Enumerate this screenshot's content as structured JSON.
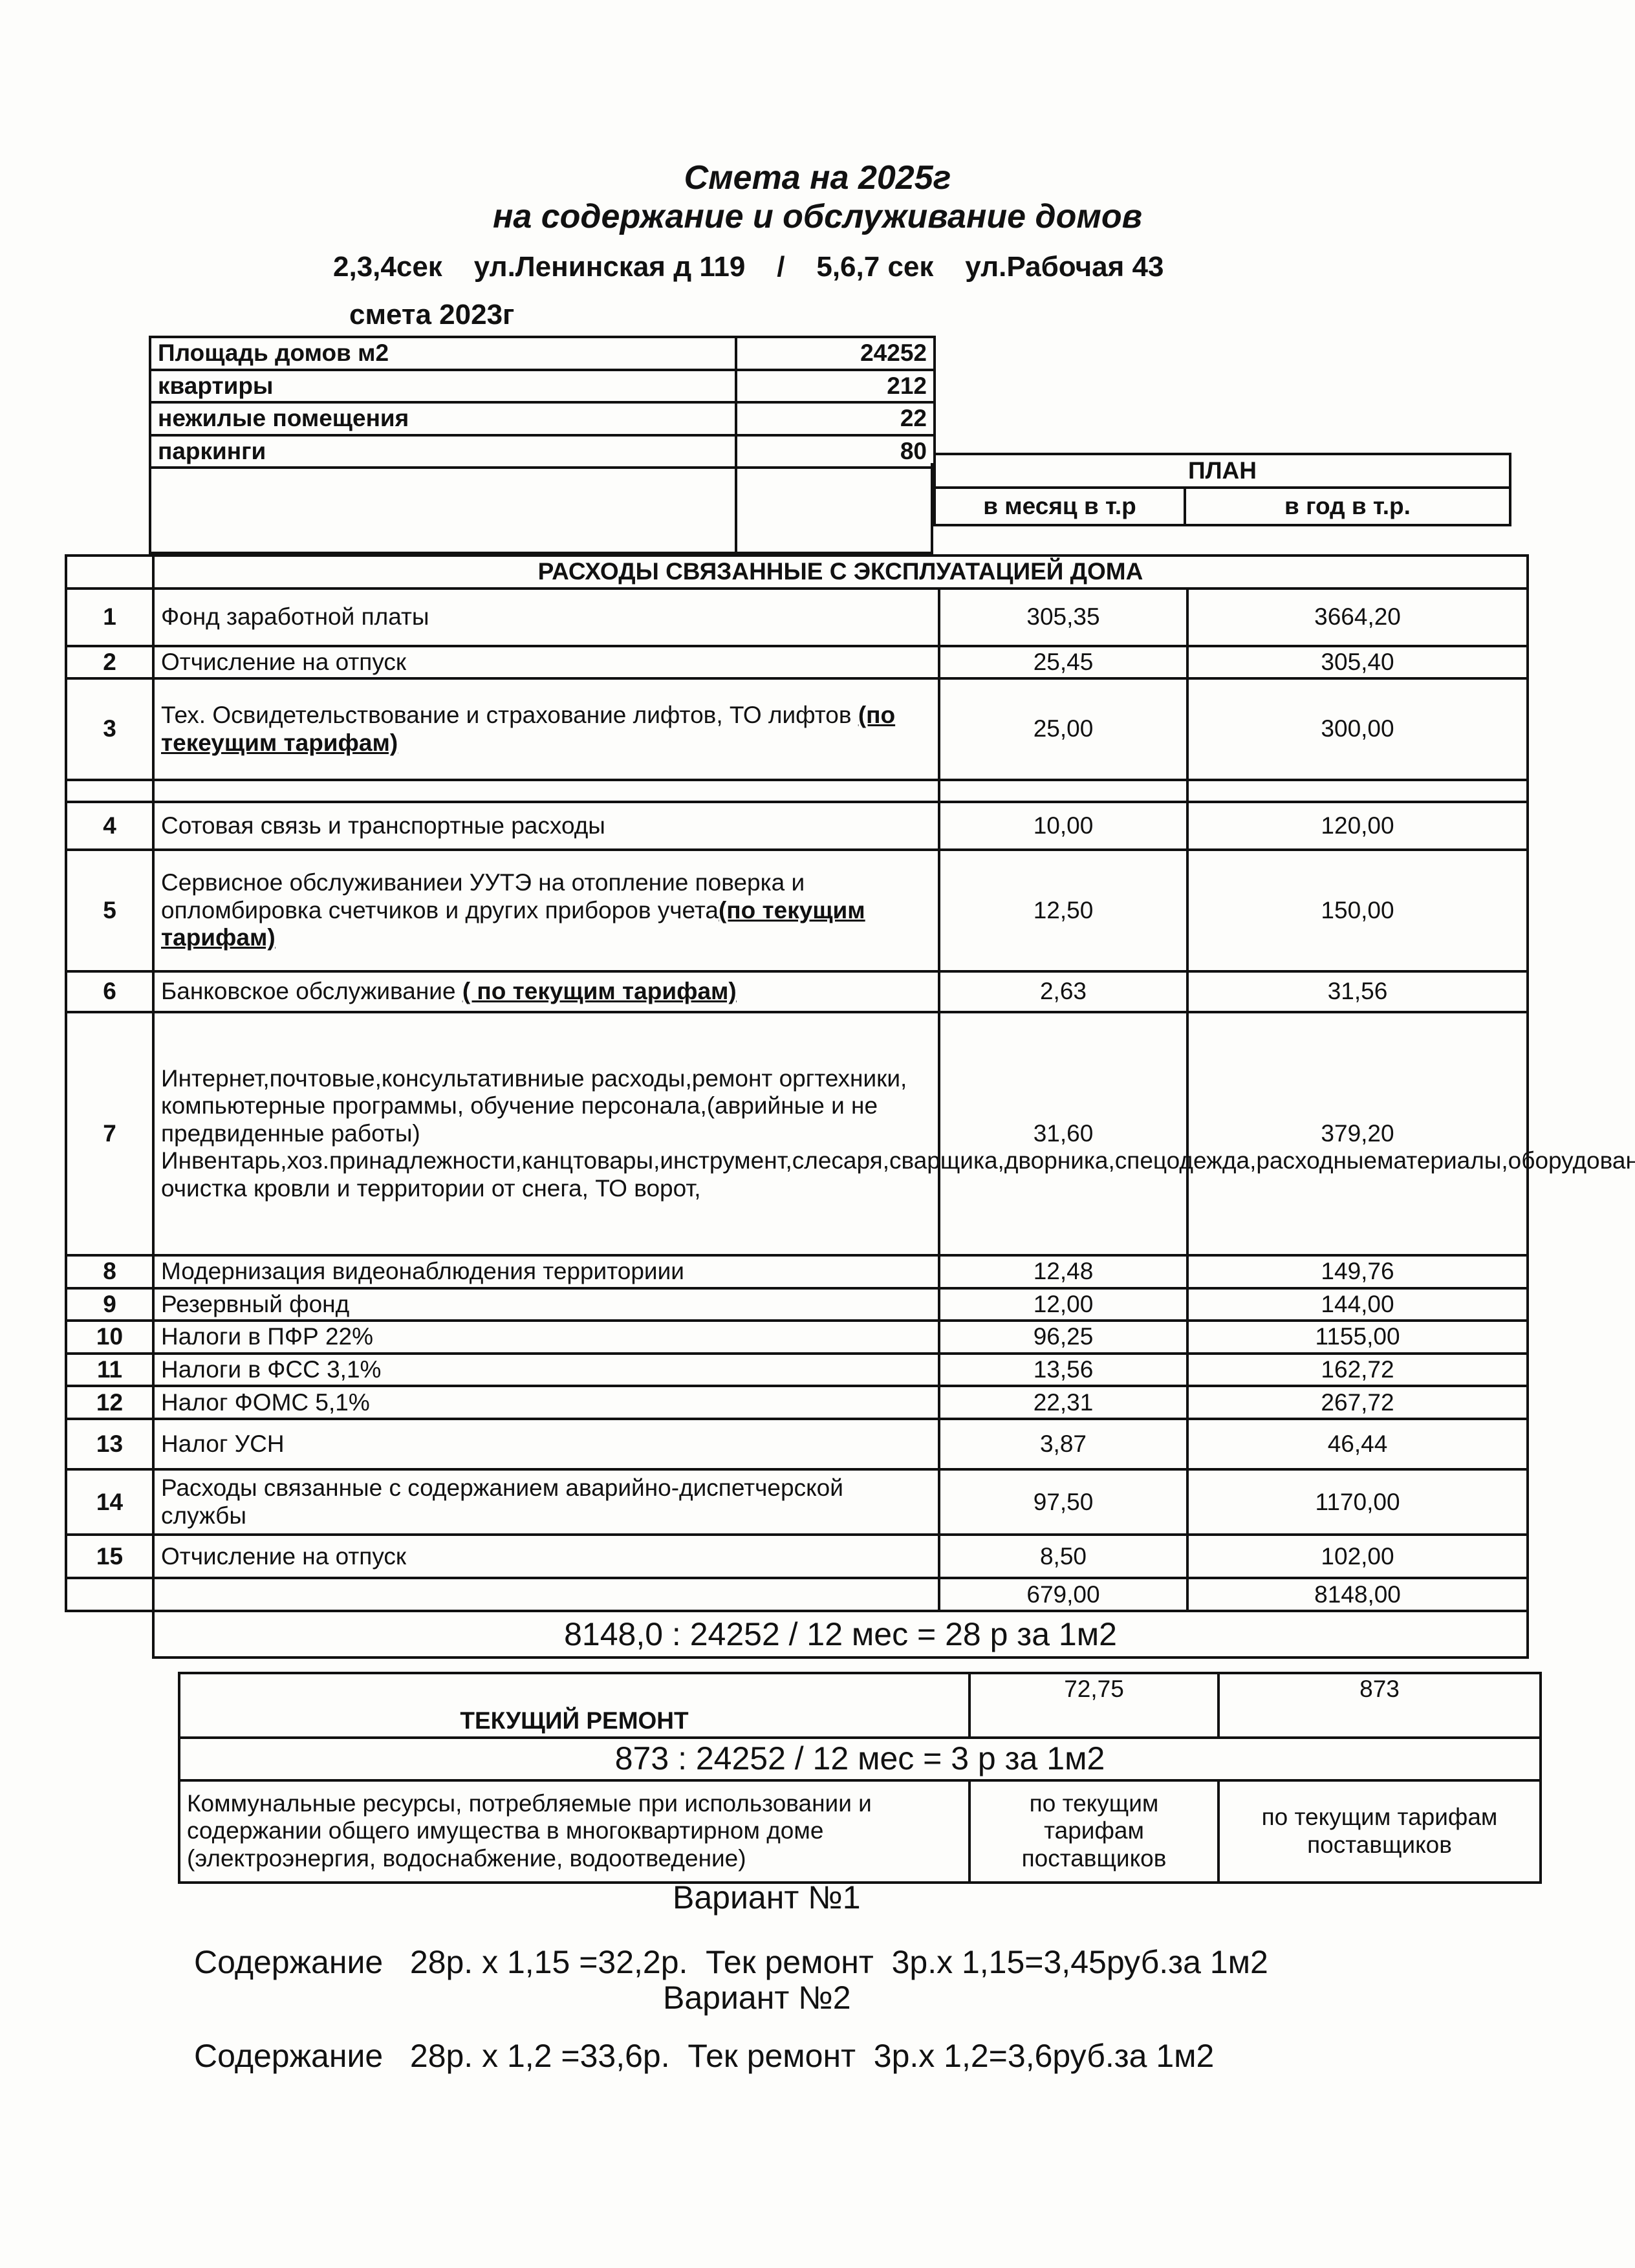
{
  "header": {
    "title": "Смета на 2025г",
    "subtitle": "на содержание и обслуживание домов",
    "address": "2,3,4сек    ул.Ленинская д 119    /    5,6,7 сек    ул.Рабочая 43",
    "note": "смета 2023г"
  },
  "summary": [
    {
      "label": "Площадь домов   м2",
      "value": "24252"
    },
    {
      "label": "квартиры",
      "value": "212"
    },
    {
      "label": "нежилые помещения",
      "value": "22"
    },
    {
      "label": "паркинги",
      "value": "80"
    }
  ],
  "plan": {
    "title": "ПЛАН",
    "month": "в месяц в т.р",
    "year": "в год в т.р."
  },
  "section_title": "РАСХОДЫ СВЯЗАННЫЕ С ЭКСПЛУАТАЦИЕЙ ДОМА",
  "rows": [
    {
      "n": "1",
      "desc": "Фонд заработной платы",
      "note": "",
      "month": "305,35",
      "year": "3664,20"
    },
    {
      "n": "2",
      "desc": "Отчисление на отпуск",
      "note": "",
      "month": "25,45",
      "year": "305,40"
    },
    {
      "n": "3",
      "desc": "Тех. Освидетельствование и страхование лифтов, ТО лифтов ",
      "note": "(по текеущим тарифам)",
      "month": "25,00",
      "year": "300,00"
    },
    {
      "n": "",
      "desc": "",
      "note": "",
      "month": "",
      "year": ""
    },
    {
      "n": "4",
      "desc": "Сотовая связь и транспортные расходы",
      "note": "",
      "month": "10,00",
      "year": "120,00"
    },
    {
      "n": "5",
      "desc": "Сервисное обслуживаниеи УУТЭ на отопление  поверка и опломбировка счетчиков и других приборов учета",
      "note": "(по текущим тарифам)",
      "month": "12,50",
      "year": "150,00"
    },
    {
      "n": "6",
      "desc": "Банковское обслуживание   ",
      "note": "( по текущим тарифам)",
      "month": "2,63",
      "year": "31,56"
    },
    {
      "n": "7",
      "desc": "Интернет,почтовые,консультативниые расходы,ремонт оргтехники, компьютерные программы, обучение персонала,(аврийные и не предвиденные работы) Инвентарь,хоз.принадлежности,канцтовары,инструмент,слесаря,сварщика,дворника,спецодежда,расходныематериалы,оборудование, очистка кровли и территории от снега, ТО ворот,",
      "note": "",
      "month": "31,60",
      "year": "379,20"
    },
    {
      "n": "8",
      "desc": "Модернизация видеонаблюдения территориии",
      "note": "",
      "month": "12,48",
      "year": "149,76"
    },
    {
      "n": "9",
      "desc": "Резервный фонд",
      "note": "",
      "month": "12,00",
      "year": "144,00"
    },
    {
      "n": "10",
      "desc": "Налоги в ПФР 22%",
      "note": "",
      "month": "96,25",
      "year": "1155,00"
    },
    {
      "n": "11",
      "desc": "Налоги в ФСС 3,1%",
      "note": "",
      "month": "13,56",
      "year": "162,72"
    },
    {
      "n": "12",
      "desc": "Налог ФОМС 5,1%",
      "note": "",
      "month": "22,31",
      "year": "267,72"
    },
    {
      "n": "13",
      "desc": "Налог УСН",
      "note": "",
      "month": "3,87",
      "year": "46,44"
    },
    {
      "n": "14",
      "desc": "Расходы связанные с содержанием аварийно-диспетчерской службы",
      "note": "",
      "month": "97,50",
      "year": "1170,00"
    },
    {
      "n": "15",
      "desc": "Отчисление на отпуск",
      "note": "",
      "month": "8,50",
      "year": "102,00"
    },
    {
      "n": "",
      "desc": "",
      "note": "",
      "month": "679,00",
      "year": "8148,00"
    }
  ],
  "formula_main": "8148,0 :  24252  /   12 мес  =  28 р   за   1м2",
  "repair": {
    "label": "ТЕКУЩИЙ РЕМОНТ",
    "month": "72,75",
    "year": "873",
    "formula": "873  :  24252  / 12 мес  =   3 р   за 1м2",
    "communal": "Коммунальные ресурсы, потребляемые при использовании и содержании общего имущества в многоквартирном доме (электроэнергия, водоснабжение, водоотведение)",
    "communal_month": "по текущим тарифам поставщиков",
    "communal_year": "по текущим тарифам поставщиков"
  },
  "variants": [
    {
      "title": "Вариант №1",
      "text": "Содержание   28р. х 1,15 =32,2р.  Тек ремонт  3р.х 1,15=3,45руб.за 1м2"
    },
    {
      "title": "Вариант №2",
      "text": "Содержание   28р. х 1,2 =33,6р.  Тек ремонт  3р.х 1,2=3,6руб.за 1м2"
    }
  ]
}
